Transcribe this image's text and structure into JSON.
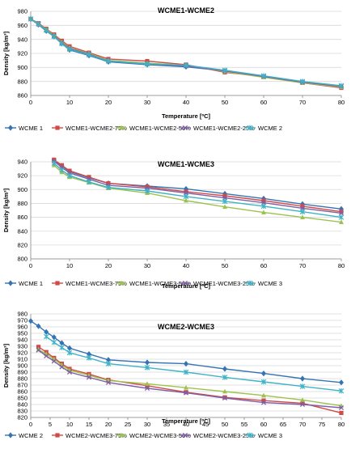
{
  "colors": {
    "WCME 1": "#3574b4",
    "WCME 2": "#3cb3c6",
    "WCME 3": "#3cb3c6",
    "75": "#d04b45",
    "50": "#9dc34e",
    "25": "#7e5ea6"
  },
  "chart_data": [
    {
      "type": "line",
      "title": "WCME1-WCME2",
      "xlabel": "Temperature [ºC]",
      "ylabel": "Density [kg/m³]",
      "xlim": [
        0,
        80
      ],
      "ylim": [
        860,
        980
      ],
      "xticks": [
        "0",
        "10",
        "20",
        "30",
        "40",
        "50",
        "60",
        "70",
        "80"
      ],
      "yticks": [
        "860",
        "880",
        "900",
        "920",
        "940",
        "960",
        "980"
      ],
      "legend_position": "bottom",
      "series": [
        {
          "name": "WCME 1",
          "marker": "diamond",
          "color_key": "WCME 1",
          "x": [
            0,
            2,
            4,
            6,
            8,
            10,
            15,
            20,
            30,
            40,
            50,
            60,
            70,
            80
          ],
          "y": [
            969,
            961,
            952,
            944,
            934,
            925,
            917,
            908,
            904,
            901,
            895,
            887,
            879,
            872
          ]
        },
        {
          "name": "WCME1-WCME2-75%",
          "marker": "square",
          "color_key": "75",
          "x": [
            0,
            2,
            4,
            6,
            8,
            10,
            15,
            20,
            30,
            40,
            50,
            60,
            70,
            80
          ],
          "y": [
            969,
            963,
            955,
            947,
            938,
            930,
            921,
            912,
            909,
            904,
            893,
            887,
            878,
            871
          ]
        },
        {
          "name": "WCME1-WCME2-50%",
          "marker": "triangle",
          "color_key": "50",
          "x": [
            0,
            2,
            4,
            6,
            8,
            10,
            15,
            20,
            30,
            40,
            50,
            60,
            70,
            80
          ],
          "y": [
            969,
            962,
            954,
            946,
            936,
            928,
            920,
            910,
            906,
            903,
            894,
            886,
            878,
            872
          ]
        },
        {
          "name": "WCME1-WCME2-25%",
          "marker": "x",
          "color_key": "25",
          "x": [
            0,
            2,
            4,
            6,
            8,
            10,
            15,
            20,
            30,
            40,
            50,
            60,
            70,
            80
          ],
          "y": [
            969,
            962,
            953,
            945,
            935,
            927,
            919,
            909,
            905,
            902,
            895,
            887,
            879,
            873
          ]
        },
        {
          "name": "WCME 2",
          "marker": "star",
          "color_key": "WCME 2",
          "x": [
            0,
            2,
            4,
            6,
            8,
            10,
            15,
            20,
            30,
            40,
            50,
            60,
            70,
            80
          ],
          "y": [
            969,
            962,
            953,
            944,
            934,
            926,
            918,
            909,
            905,
            903,
            896,
            888,
            880,
            874
          ]
        }
      ]
    },
    {
      "type": "line",
      "title": "WCME1-WCME3",
      "xlabel": "Temperature [ºC]",
      "ylabel": "Density [kg/m³]",
      "xlim": [
        0,
        80
      ],
      "ylim": [
        800,
        940
      ],
      "xticks": [
        "0",
        "10",
        "20",
        "30",
        "40",
        "50",
        "60",
        "70",
        "80"
      ],
      "yticks": [
        "800",
        "820",
        "840",
        "860",
        "880",
        "900",
        "920",
        "940"
      ],
      "legend_position": "bottom",
      "series": [
        {
          "name": "WCME 1",
          "marker": "diamond",
          "color_key": "WCME 1",
          "x": [
            6,
            8,
            10,
            15,
            20,
            30,
            40,
            50,
            60,
            70,
            80
          ],
          "y": [
            942,
            934,
            926,
            917,
            909,
            905,
            901,
            894,
            887,
            879,
            872
          ]
        },
        {
          "name": "WCME1-WCME3-75%",
          "marker": "square",
          "color_key": "75",
          "x": [
            6,
            8,
            10,
            15,
            20,
            30,
            40,
            50,
            60,
            70,
            80
          ],
          "y": [
            943,
            935,
            927,
            918,
            909,
            904,
            897,
            891,
            884,
            876,
            868
          ]
        },
        {
          "name": "WCME1-WCME3-50%",
          "marker": "triangle",
          "color_key": "50",
          "x": [
            6,
            8,
            10,
            15,
            20,
            30,
            40,
            50,
            60,
            70,
            80
          ],
          "y": [
            935,
            925,
            918,
            910,
            902,
            895,
            884,
            875,
            867,
            860,
            853
          ]
        },
        {
          "name": "WCME1-WCME3-25%",
          "marker": "x",
          "color_key": "25",
          "x": [
            6,
            8,
            10,
            15,
            20,
            30,
            40,
            50,
            60,
            70,
            80
          ],
          "y": [
            941,
            932,
            924,
            915,
            906,
            902,
            895,
            888,
            881,
            873,
            866
          ]
        },
        {
          "name": "WCME 3",
          "marker": "star",
          "color_key": "WCME 3",
          "x": [
            6,
            8,
            10,
            15,
            20,
            30,
            40,
            50,
            60,
            70,
            80
          ],
          "y": [
            938,
            928,
            920,
            911,
            903,
            898,
            890,
            883,
            876,
            868,
            860
          ]
        }
      ]
    },
    {
      "type": "line",
      "title": "WCME2-WCME3",
      "xlabel": "Temperature [ºC]",
      "ylabel": "Density [kg/m³]",
      "xlim": [
        0,
        80
      ],
      "ylim": [
        820,
        980
      ],
      "xticks": [
        "0",
        "5",
        "10",
        "15",
        "20",
        "25",
        "30",
        "35",
        "40",
        "45",
        "50",
        "55",
        "60",
        "65",
        "70",
        "75",
        "80"
      ],
      "yticks": [
        "820",
        "830",
        "840",
        "850",
        "860",
        "870",
        "880",
        "890",
        "900",
        "910",
        "920",
        "930",
        "940",
        "950",
        "960",
        "970",
        "980"
      ],
      "legend_position": "bottom",
      "series": [
        {
          "name": "WCME 2",
          "marker": "diamond",
          "color_key": "WCME 1",
          "x": [
            0,
            2,
            4,
            6,
            8,
            10,
            15,
            20,
            30,
            40,
            50,
            60,
            70,
            80
          ],
          "y": [
            969,
            961,
            952,
            944,
            935,
            927,
            918,
            909,
            905,
            903,
            895,
            888,
            880,
            874
          ]
        },
        {
          "name": "WCME2-WCME3-75%",
          "marker": "square",
          "color_key": "75",
          "x": [
            2,
            4,
            6,
            8,
            10,
            15,
            20,
            30,
            40,
            50,
            60,
            70,
            80
          ],
          "y": [
            929,
            921,
            912,
            903,
            895,
            887,
            878,
            869,
            859,
            851,
            846,
            842,
            827
          ]
        },
        {
          "name": "WCME2-WCME3-50%",
          "marker": "triangle",
          "color_key": "50",
          "x": [
            2,
            4,
            6,
            8,
            10,
            15,
            20,
            30,
            40,
            50,
            60,
            70,
            80
          ],
          "y": [
            925,
            918,
            910,
            901,
            893,
            885,
            877,
            872,
            866,
            860,
            854,
            847,
            838
          ]
        },
        {
          "name": "WCME2-WCME3-25%",
          "marker": "x",
          "color_key": "25",
          "x": [
            2,
            4,
            6,
            8,
            10,
            15,
            20,
            30,
            40,
            50,
            60,
            70,
            80
          ],
          "y": [
            924,
            915,
            907,
            898,
            890,
            882,
            874,
            865,
            858,
            850,
            843,
            840,
            835
          ]
        },
        {
          "name": "WCME 3",
          "marker": "star",
          "color_key": "WCME 2",
          "x": [
            4,
            6,
            8,
            10,
            15,
            20,
            30,
            40,
            50,
            60,
            70,
            80
          ],
          "y": [
            945,
            936,
            928,
            920,
            912,
            903,
            897,
            890,
            882,
            875,
            868,
            861
          ]
        }
      ]
    }
  ]
}
